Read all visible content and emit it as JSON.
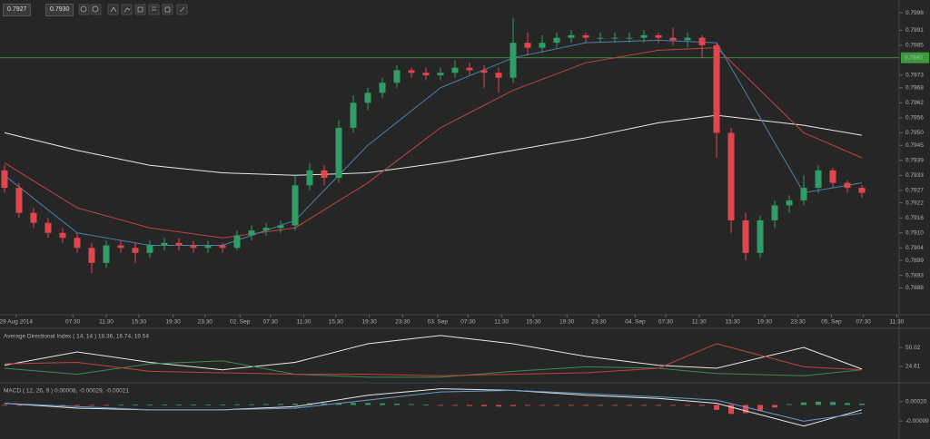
{
  "toolbar": {
    "bid": "0.7927",
    "ask": "0.7930"
  },
  "chart_data": [
    {
      "type": "candlestick",
      "up_color": "#2e9e63",
      "down_color": "#e0474c",
      "candles": [
        [
          0.7935,
          0.7937,
          0.7926,
          0.7928
        ],
        [
          0.7928,
          0.793,
          0.7916,
          0.7918
        ],
        [
          0.7918,
          0.792,
          0.7912,
          0.7914
        ],
        [
          0.7914,
          0.7916,
          0.7908,
          0.791
        ],
        [
          0.791,
          0.7912,
          0.7906,
          0.7908
        ],
        [
          0.7908,
          0.791,
          0.7902,
          0.7904
        ],
        [
          0.7904,
          0.7906,
          0.7894,
          0.7898
        ],
        [
          0.7898,
          0.7907,
          0.7896,
          0.7905
        ],
        [
          0.7905,
          0.7907,
          0.7902,
          0.7904
        ],
        [
          0.7904,
          0.7906,
          0.7898,
          0.7902
        ],
        [
          0.7902,
          0.7907,
          0.79,
          0.7905
        ],
        [
          0.7905,
          0.7908,
          0.7903,
          0.7906
        ],
        [
          0.7906,
          0.7908,
          0.7903,
          0.7905
        ],
        [
          0.7905,
          0.7907,
          0.7902,
          0.7904
        ],
        [
          0.7904,
          0.7907,
          0.7902,
          0.7905
        ],
        [
          0.7905,
          0.7906,
          0.7902,
          0.7904
        ],
        [
          0.7904,
          0.7911,
          0.7903,
          0.7909
        ],
        [
          0.7909,
          0.7913,
          0.7907,
          0.7911
        ],
        [
          0.7911,
          0.7914,
          0.7909,
          0.7912
        ],
        [
          0.7912,
          0.7915,
          0.791,
          0.7913
        ],
        [
          0.7913,
          0.7933,
          0.7911,
          0.7929
        ],
        [
          0.7929,
          0.7938,
          0.7927,
          0.7935
        ],
        [
          0.7935,
          0.7937,
          0.7929,
          0.7932
        ],
        [
          0.7932,
          0.7955,
          0.793,
          0.7952
        ],
        [
          0.7952,
          0.7965,
          0.795,
          0.7962
        ],
        [
          0.7962,
          0.7968,
          0.7959,
          0.7966
        ],
        [
          0.7966,
          0.7972,
          0.7964,
          0.797
        ],
        [
          0.797,
          0.7977,
          0.7968,
          0.7975
        ],
        [
          0.7975,
          0.7976,
          0.7972,
          0.7974
        ],
        [
          0.7974,
          0.7976,
          0.7971,
          0.7973
        ],
        [
          0.7973,
          0.7976,
          0.7971,
          0.7974
        ],
        [
          0.7974,
          0.7979,
          0.7972,
          0.7976
        ],
        [
          0.7976,
          0.7978,
          0.7973,
          0.7975
        ],
        [
          0.7975,
          0.7977,
          0.7968,
          0.7974
        ],
        [
          0.7974,
          0.7976,
          0.7966,
          0.7972
        ],
        [
          0.7972,
          0.7996,
          0.797,
          0.7986
        ],
        [
          0.7986,
          0.799,
          0.7981,
          0.7984
        ],
        [
          0.7984,
          0.7989,
          0.7982,
          0.7986
        ],
        [
          0.7986,
          0.799,
          0.7984,
          0.7988
        ],
        [
          0.7988,
          0.7991,
          0.7986,
          0.7989
        ],
        [
          0.7989,
          0.799,
          0.7986,
          0.7988
        ],
        [
          0.7988,
          0.799,
          0.7986,
          0.7988
        ],
        [
          0.7988,
          0.799,
          0.7986,
          0.7988
        ],
        [
          0.7988,
          0.799,
          0.7986,
          0.7988
        ],
        [
          0.7988,
          0.7991,
          0.7986,
          0.7989
        ],
        [
          0.7989,
          0.799,
          0.7986,
          0.7988
        ],
        [
          0.7988,
          0.7992,
          0.7985,
          0.7987
        ],
        [
          0.7987,
          0.799,
          0.7984,
          0.7988
        ],
        [
          0.7988,
          0.7989,
          0.798,
          0.7985
        ],
        [
          0.7985,
          0.7986,
          0.794,
          0.795
        ],
        [
          0.795,
          0.7952,
          0.791,
          0.7915
        ],
        [
          0.7915,
          0.7918,
          0.7899,
          0.7902
        ],
        [
          0.7902,
          0.7917,
          0.79,
          0.7915
        ],
        [
          0.7915,
          0.7923,
          0.7912,
          0.7921
        ],
        [
          0.7921,
          0.7925,
          0.7918,
          0.7923
        ],
        [
          0.7923,
          0.7933,
          0.7921,
          0.7928
        ],
        [
          0.7928,
          0.7937,
          0.7926,
          0.7935
        ],
        [
          0.7935,
          0.7936,
          0.7928,
          0.793
        ],
        [
          0.793,
          0.7931,
          0.7926,
          0.7928
        ],
        [
          0.7928,
          0.7929,
          0.7924,
          0.7926
        ]
      ],
      "x": [
        0,
        5,
        10,
        15,
        20,
        25,
        30,
        35,
        40,
        45,
        49,
        55,
        59
      ],
      "series": [
        {
          "color": "#e8e8e8",
          "values": [
            0.795,
            0.7943,
            0.7937,
            0.7934,
            0.7933,
            0.7934,
            0.7938,
            0.7943,
            0.7948,
            0.7954,
            0.7957,
            0.7953,
            0.7949
          ]
        },
        {
          "color": "#c0443f",
          "values": [
            0.7938,
            0.792,
            0.7912,
            0.7908,
            0.7912,
            0.793,
            0.7952,
            0.7967,
            0.7978,
            0.7983,
            0.7984,
            0.795,
            0.794
          ]
        },
        {
          "color": "#4a7fb0",
          "values": [
            0.7933,
            0.791,
            0.7905,
            0.7905,
            0.7915,
            0.7945,
            0.7968,
            0.798,
            0.7986,
            0.7987,
            0.7986,
            0.7926,
            0.793
          ]
        }
      ],
      "price_line": {
        "value": 0.798,
        "label": "0.7980",
        "color": "#3c9a3c"
      },
      "xlim": [
        -0.31,
        61.56
      ],
      "xticks": [
        {
          "value": 0.8,
          "label": "29 Aug 2014"
        },
        {
          "value": 4.7,
          "label": "07:30"
        },
        {
          "value": 7.0,
          "label": "11:30"
        },
        {
          "value": 9.25,
          "label": "15:30"
        },
        {
          "value": 11.6,
          "label": "19:30"
        },
        {
          "value": 13.8,
          "label": "23:30"
        },
        {
          "value": 16.2,
          "label": "02. Sep"
        },
        {
          "value": 18.3,
          "label": "07:30"
        },
        {
          "value": 20.6,
          "label": "11:30"
        },
        {
          "value": 22.8,
          "label": "15:30"
        },
        {
          "value": 25.1,
          "label": "19:30"
        },
        {
          "value": 27.4,
          "label": "23:30"
        },
        {
          "value": 29.8,
          "label": "03. Sep"
        },
        {
          "value": 31.9,
          "label": "07:30"
        },
        {
          "value": 34.2,
          "label": "11:30"
        },
        {
          "value": 36.4,
          "label": "15:30"
        },
        {
          "value": 38.7,
          "label": "19:30"
        },
        {
          "value": 40.9,
          "label": "23:30"
        },
        {
          "value": 43.4,
          "label": "04. Sep"
        },
        {
          "value": 45.5,
          "label": "07:30"
        },
        {
          "value": 47.8,
          "label": "11:30"
        },
        {
          "value": 50.1,
          "label": "15:30"
        },
        {
          "value": 52.3,
          "label": "19:30"
        },
        {
          "value": 54.6,
          "label": "23:30"
        },
        {
          "value": 56.9,
          "label": "05. Sep"
        },
        {
          "value": 59.1,
          "label": "07:30"
        },
        {
          "value": 61.4,
          "label": "11:30"
        }
      ],
      "ylim": [
        0.7878,
        0.8002
      ],
      "yticks": [
        0.7998,
        0.7991,
        0.7985,
        0.7973,
        0.7968,
        0.7962,
        0.7956,
        {
          "value": 0.795,
          "label": "0.7950"
        },
        0.7945,
        0.7939,
        0.7933,
        0.7927,
        0.7922,
        0.7916,
        {
          "value": 0.791,
          "label": "0.7910"
        },
        0.7904,
        0.7899,
        0.7893,
        0.7888
      ],
      "grid": false
    },
    {
      "type": "line",
      "title": "Average Directional Index ( 14, 14 ) 18.36, 16.74, 19.54",
      "x": [
        0,
        5,
        10,
        15,
        20,
        25,
        30,
        35,
        40,
        45,
        49,
        55,
        59
      ],
      "series": [
        {
          "color": "#e8e8e8",
          "values": [
            26,
            44,
            30,
            20,
            30,
            55,
            66,
            55,
            38,
            26,
            22,
            50,
            21
          ]
        },
        {
          "color": "#3f8a4f",
          "values": [
            22,
            14,
            28,
            32,
            14,
            10,
            10,
            18,
            24,
            22,
            15,
            12,
            20
          ]
        },
        {
          "color": "#c0443f",
          "values": [
            28,
            30,
            18,
            16,
            14,
            14,
            12,
            14,
            16,
            22,
            55,
            24,
            20
          ]
        }
      ],
      "ylim": [
        5,
        72
      ],
      "yticks": [
        50.02,
        24.61
      ]
    },
    {
      "type": "line",
      "title": "MACD ( 12, 26, 9 ) 0.00008, -0.00029, -0.00021",
      "x": [
        0,
        5,
        10,
        15,
        20,
        25,
        30,
        35,
        40,
        45,
        49,
        55,
        59
      ],
      "series": [
        {
          "color": "#e8e8e8",
          "values": [
            0.0001,
            -0.0002,
            -0.0003,
            -0.0003,
            -0.0001,
            0.0006,
            0.001,
            0.0009,
            0.0006,
            0.0004,
            0.0001,
            -0.0013,
            -0.0003
          ]
        },
        {
          "color": "#6a9ccc",
          "values": [
            0.0001,
            -0.0001,
            -0.0003,
            -0.0003,
            -0.0002,
            0.0003,
            0.0008,
            0.0009,
            0.0007,
            0.0005,
            0.0003,
            -0.001,
            -0.0005
          ]
        }
      ],
      "histogram": {
        "up_color": "#2e9e63",
        "down_color": "#e0474c",
        "values": [
          -2e-05,
          -3e-05,
          -4e-05,
          -4e-05,
          -3e-05,
          -3e-05,
          -2e-05,
          -1e-05,
          1e-05,
          2e-05,
          2e-05,
          3e-05,
          2e-05,
          2e-05,
          3e-05,
          3e-05,
          4e-05,
          4e-05,
          5e-05,
          6e-05,
          8e-05,
          0.0001,
          0.0001,
          0.00012,
          0.00013,
          0.00012,
          0.0001,
          8e-05,
          5e-05,
          2e-05,
          -2e-05,
          -4e-05,
          -6e-05,
          -8e-05,
          -0.0001,
          -7e-05,
          -5e-05,
          -4e-05,
          -4e-05,
          -5e-05,
          -4e-05,
          -3e-05,
          -3e-05,
          -2e-05,
          -2e-05,
          -2e-05,
          -2e-05,
          -3e-05,
          -5e-05,
          -0.0003,
          -0.00055,
          -0.0005,
          -0.00035,
          -0.00015,
          5e-05,
          0.00015,
          0.0002,
          0.00018,
          0.00012,
          8e-05
        ]
      },
      "ylim": [
        -0.0021,
        0.0012
      ],
      "yticks": [
        {
          "value": 0.0002,
          "label": "0.00020"
        },
        -0.00099
      ]
    }
  ]
}
